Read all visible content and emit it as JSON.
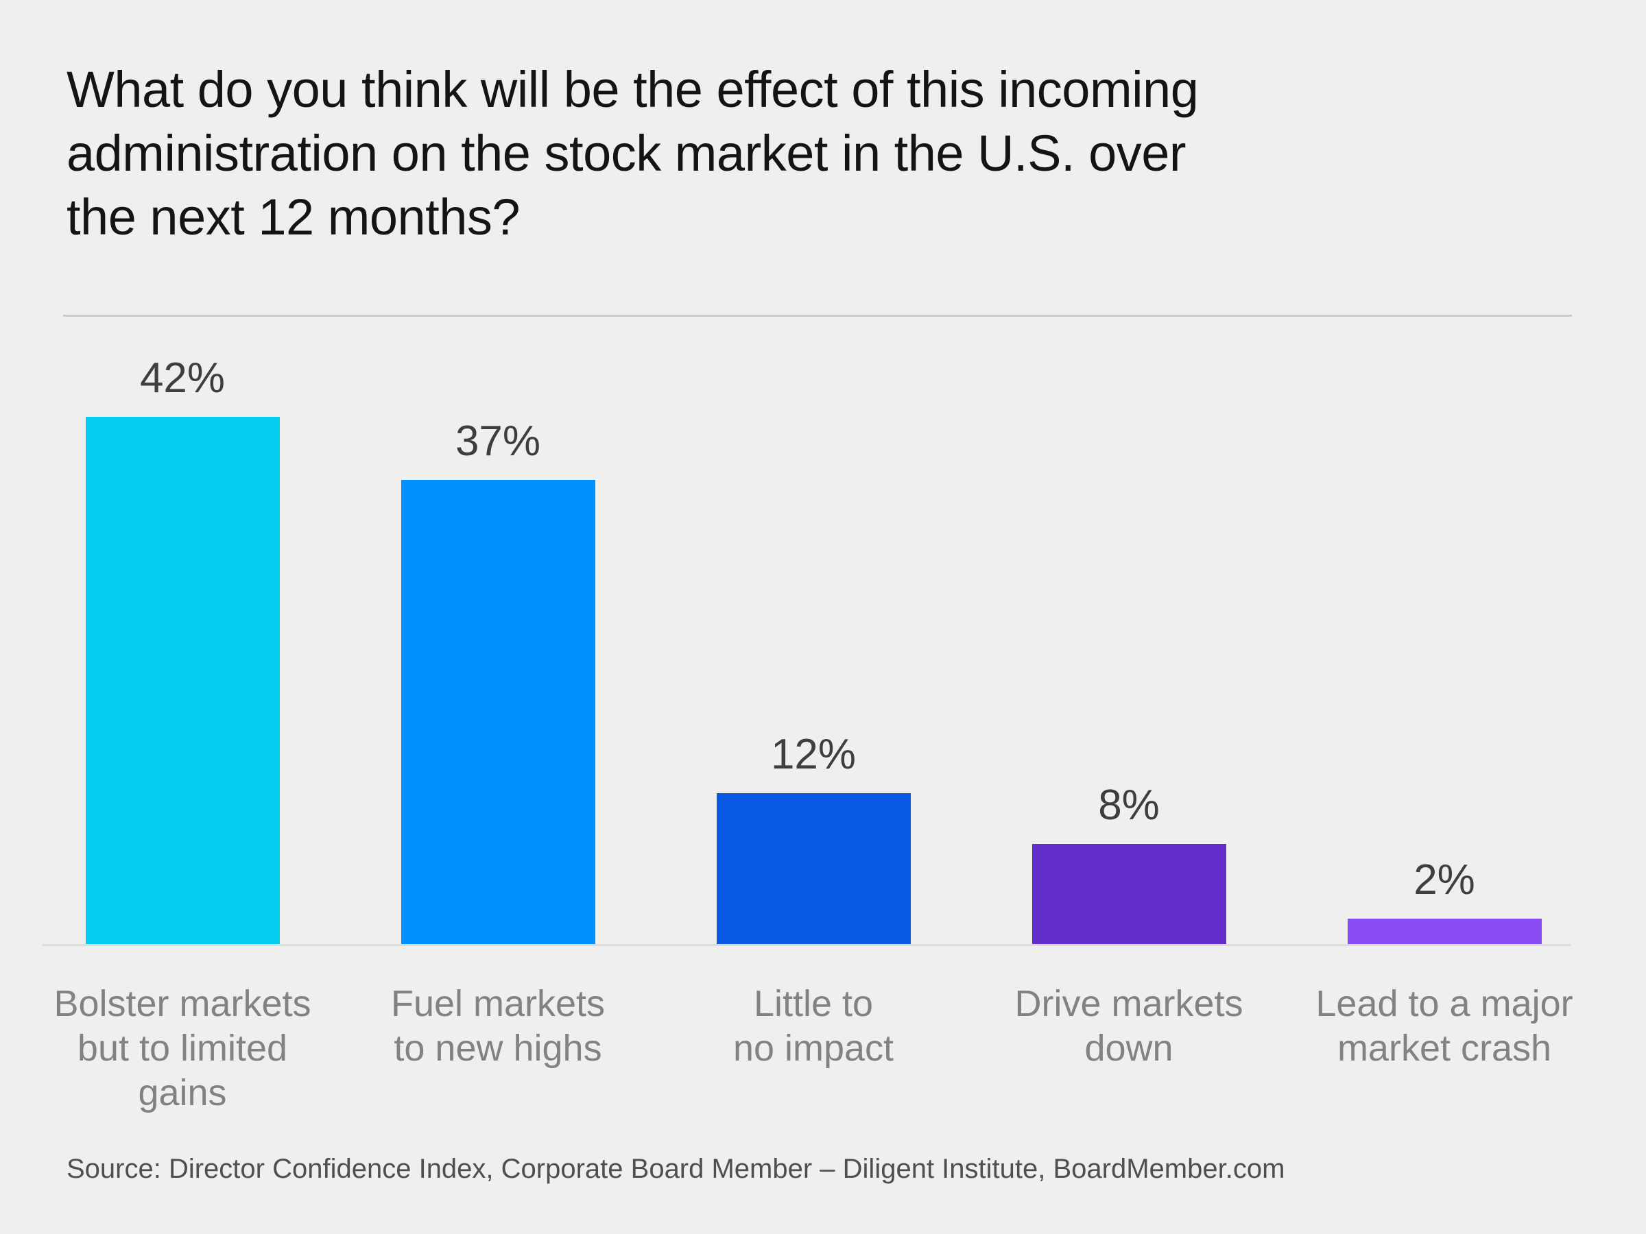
{
  "title_lines": [
    "What do you think will be the effect of this incoming",
    "administration on the stock market in the U.S. over",
    "the next 12 months?"
  ],
  "source": "Source: Director Confidence Index, Corporate Board Member – Diligent Institute, BoardMember.com",
  "colors": {
    "background": "#EFEFED",
    "title_text": "#141414",
    "value_label_text": "#3E3E3E",
    "category_label_text": "#828282",
    "source_text": "#4F4F4F",
    "divider_line": "#C9C9C9",
    "baseline_line": "#DCDCDA"
  },
  "chart_data": {
    "type": "bar",
    "title": "What do you think will be the effect of this incoming administration on the stock market in the U.S. over the next 12 months?",
    "categories": [
      "Bolster markets but to limited gains",
      "Fuel markets to new highs",
      "Little to no impact",
      "Drive markets down",
      "Lead to a major market crash"
    ],
    "category_display_lines": [
      [
        "Bolster markets",
        "but to limited",
        "gains"
      ],
      [
        "Fuel markets",
        "to new highs"
      ],
      [
        "Little to",
        "no impact"
      ],
      [
        "Drive markets",
        "down"
      ],
      [
        "Lead to a major",
        "market crash"
      ]
    ],
    "values": [
      42,
      37,
      12,
      8,
      2
    ],
    "value_labels": [
      "42%",
      "37%",
      "12%",
      "8%",
      "2%"
    ],
    "bar_colors": [
      "#03CEF1",
      "#0290FE",
      "#075AE1",
      "#622DCB",
      "#8A4CF4"
    ],
    "ylim": [
      0,
      45
    ],
    "xlabel": "",
    "ylabel": "",
    "grid": false,
    "legend": false,
    "value_label_format": "percent",
    "value_labels_position": "above-bars",
    "axes_shown": "baseline-only"
  }
}
